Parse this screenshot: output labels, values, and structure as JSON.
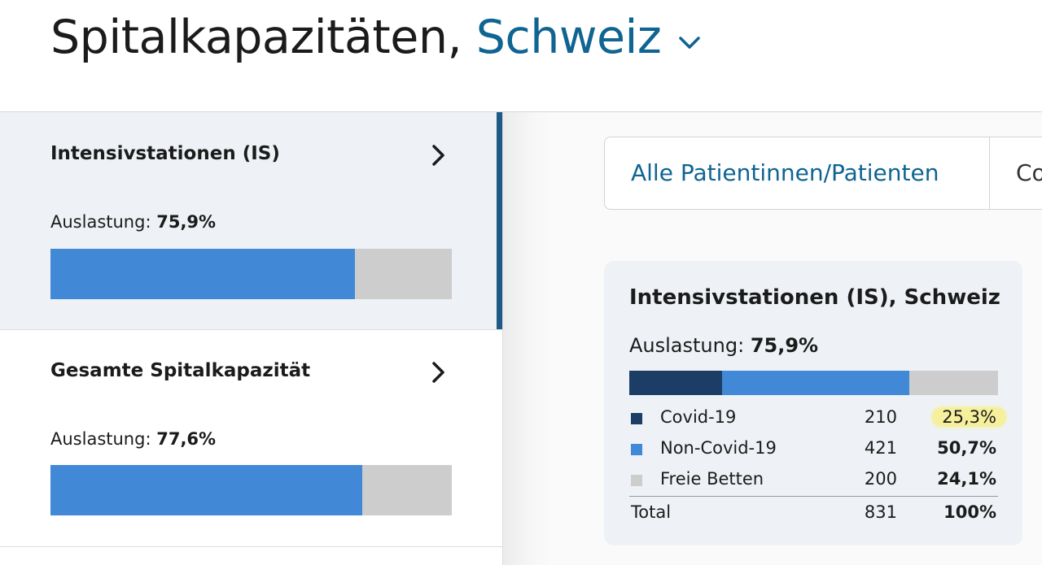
{
  "header": {
    "title_prefix": "Spitalkapazitäten, ",
    "region": "Schweiz"
  },
  "sidebar": {
    "cards": [
      {
        "title": "Intensivstationen (IS)",
        "util_label": "Auslastung:",
        "util_value": "75,9%",
        "fill_percent": 75.9,
        "active": true
      },
      {
        "title": "Gesamte Spitalkapazität",
        "util_label": "Auslastung:",
        "util_value": "77,6%",
        "fill_percent": 77.6,
        "active": false
      }
    ]
  },
  "tabs": [
    {
      "label": "Alle Patientinnen/Patienten",
      "selected": true
    },
    {
      "label": "Co",
      "selected": false
    }
  ],
  "stat": {
    "title": "Intensivstationen (IS), Schweiz",
    "util_label": "Auslastung:",
    "util_value": "75,9%",
    "rows": [
      {
        "label": "Covid-19",
        "count": "210",
        "pct": "25,3%",
        "color": "#1b3d66",
        "share": 25.3,
        "highlight": true
      },
      {
        "label": "Non-Covid-19",
        "count": "421",
        "pct": "50,7%",
        "color": "#4189d6",
        "share": 50.7,
        "highlight": false
      },
      {
        "label": "Freie Betten",
        "count": "200",
        "pct": "24,1%",
        "color": "#cdcdcd",
        "share": 24.1,
        "highlight": false
      }
    ],
    "total": {
      "label": "Total",
      "count": "831",
      "pct": "100%"
    }
  },
  "colors": {
    "accent": "#0f6492",
    "active_bar": "#1f5a86",
    "bar_fill": "#4189d6",
    "bar_track": "#cdcdcd",
    "highlight": "#f6ef9c"
  }
}
